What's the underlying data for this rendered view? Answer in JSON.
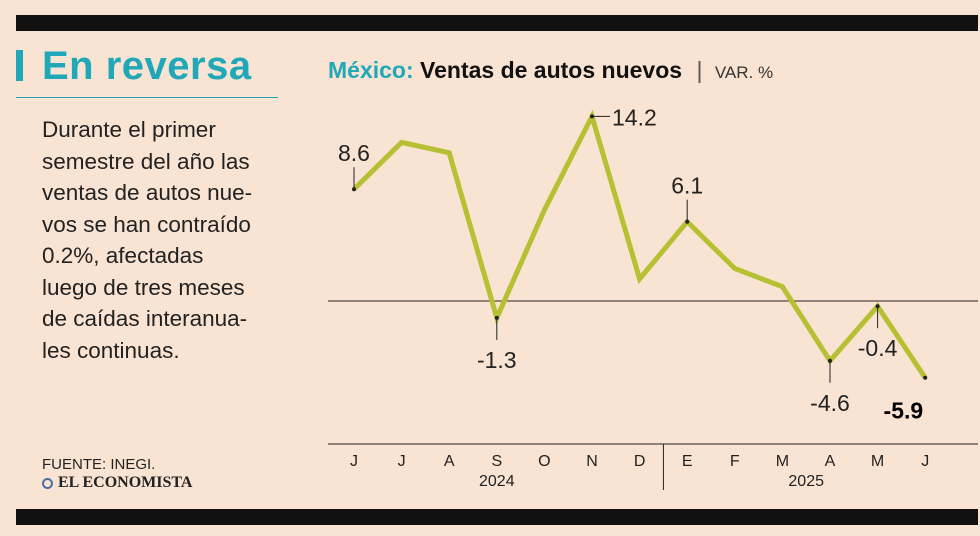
{
  "headline": "En reversa",
  "body_lines": [
    "Durante el primer",
    "semestre del año las",
    "ventas de autos nue-",
    "vos se han contraído",
    "0.2%, afectadas",
    "luego de tres meses",
    "de caídas interanua-",
    "les continuas."
  ],
  "chart_header": {
    "country": "México:",
    "metric": "Ventas de autos nuevos",
    "separator": "|",
    "unit": "VAR. %"
  },
  "source": "FUENTE: INEGI.",
  "brand": "EL ECONOMISTA",
  "colors": {
    "accent": "#20a8b8",
    "line": "#b5c132",
    "background": "#f9e3d3",
    "bars": "#111111"
  },
  "chart_data": {
    "type": "line",
    "title": "México: Ventas de autos nuevos",
    "ylabel": "VAR. %",
    "categories": [
      "J",
      "J",
      "A",
      "S",
      "O",
      "N",
      "D",
      "E",
      "F",
      "M",
      "A",
      "M",
      "J"
    ],
    "years": [
      {
        "label": "2024",
        "from": 0,
        "to": 6
      },
      {
        "label": "2025",
        "from": 7,
        "to": 12
      }
    ],
    "series": [
      {
        "name": "Ventas de autos nuevos",
        "values": [
          8.6,
          12.2,
          11.4,
          -1.3,
          7.0,
          14.2,
          1.7,
          6.1,
          2.5,
          1.1,
          -4.6,
          -0.4,
          -5.9
        ]
      }
    ],
    "ylim": [
      -11,
      17
    ],
    "labels": [
      {
        "index": 0,
        "text": "8.6",
        "pos": "above"
      },
      {
        "index": 3,
        "text": "-1.3",
        "pos": "below"
      },
      {
        "index": 5,
        "text": "14.2",
        "pos": "right"
      },
      {
        "index": 7,
        "text": "6.1",
        "pos": "above"
      },
      {
        "index": 10,
        "text": "-4.6",
        "pos": "below"
      },
      {
        "index": 11,
        "text": "-0.4",
        "pos": "below"
      },
      {
        "index": 12,
        "text": "-5.9",
        "pos": "belowleft",
        "strong": true
      }
    ]
  }
}
